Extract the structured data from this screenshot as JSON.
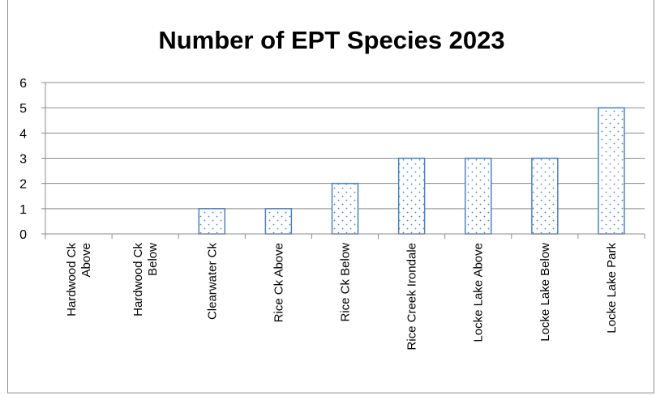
{
  "chart_data": {
    "type": "bar",
    "title": "Number of EPT Species 2023",
    "xlabel": "",
    "ylabel": "",
    "ylim": [
      0,
      6
    ],
    "yticks": [
      "0",
      "1",
      "2",
      "3",
      "4",
      "5",
      "6"
    ],
    "grid": true,
    "legend": "none",
    "bar_fill": "#ffffff",
    "bar_edge": "#4f81bd",
    "bar_pattern": "dotted",
    "categories": [
      [
        "Hardwood Ck",
        "Above"
      ],
      [
        "Hardwood Ck",
        "Below"
      ],
      [
        "Clearwater Ck"
      ],
      [
        "Rice Ck Above"
      ],
      [
        "Rice Ck Below"
      ],
      [
        "Rice Creek Irondale"
      ],
      [
        "Locke Lake Above"
      ],
      [
        "Locke Lake Below"
      ],
      [
        "Locke Lake Park"
      ]
    ],
    "values": [
      0,
      0,
      1,
      1,
      2,
      3,
      3,
      3,
      5
    ]
  }
}
